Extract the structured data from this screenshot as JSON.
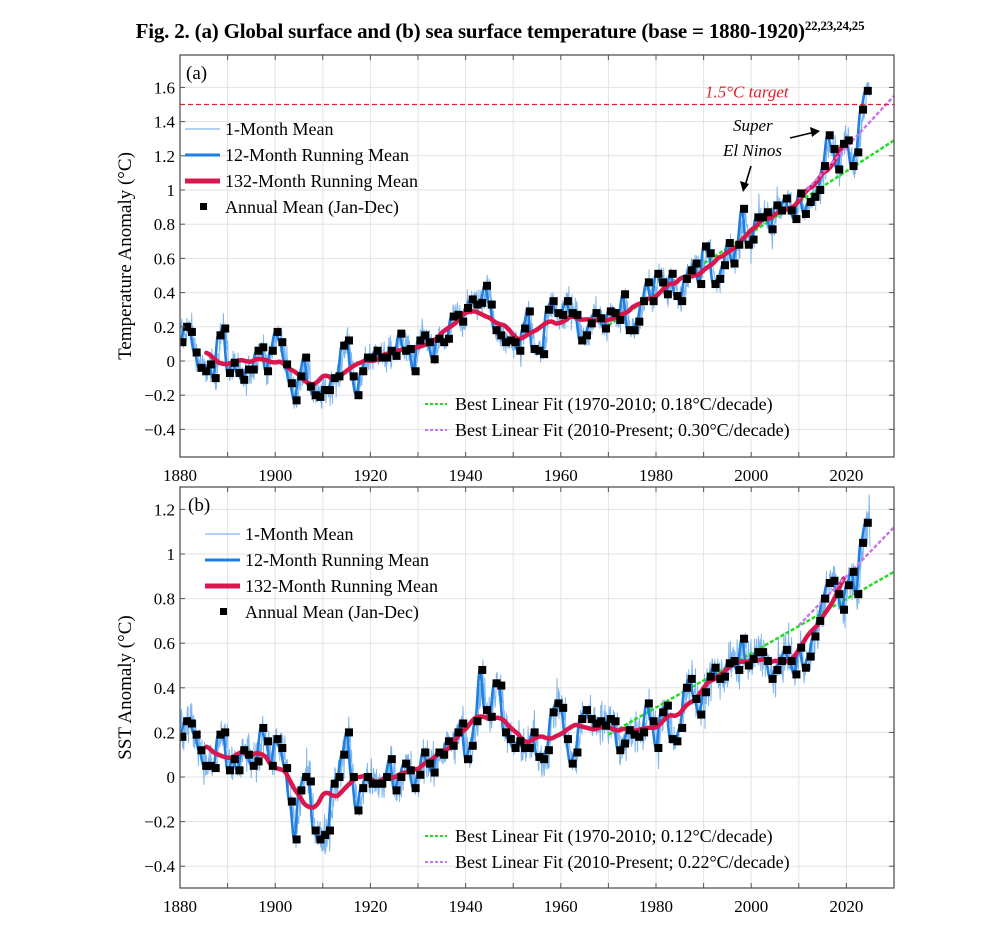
{
  "figure": {
    "title": "Fig. 2. (a) Global surface and (b) sea surface temperature (base = 1880-1920)",
    "title_refs": "22,23,24,25"
  },
  "colors": {
    "monthly": "#7fb6ee",
    "running12": "#1f7fe0",
    "running132": "#d8174f",
    "annual": "#000000",
    "fit1": "#22dd22",
    "fit2": "#cc77ee",
    "target": "#e0202e",
    "grid": "#e3e3e3",
    "axis": "#555555"
  },
  "chart_data": [
    {
      "type": "line",
      "panel": "(a)",
      "title": "Global surface temperature",
      "xlabel": "",
      "ylabel": "Temperature Anomaly (°C)",
      "xlim": [
        1880,
        2030
      ],
      "ylim": [
        -0.55,
        1.75
      ],
      "grid": true,
      "legend_position": "top-left",
      "x_ticks": [
        1880,
        1900,
        1920,
        1940,
        1960,
        1980,
        2000,
        2020
      ],
      "y_ticks": [
        -0.4,
        -0.2,
        0,
        0.2,
        0.4,
        0.6,
        0.8,
        1,
        1.2,
        1.4,
        1.6
      ],
      "y_tick_labels": [
        "−0.4",
        "−0.2",
        "0",
        "0.2",
        "0.4",
        "0.6",
        "0.8",
        "1",
        "1.2",
        "1.4",
        "1.6"
      ],
      "x_tick_labels": [
        "1880",
        "1900",
        "1920",
        "1940",
        "1960",
        "1980",
        "2000",
        "2020"
      ],
      "legend": [
        {
          "key": "monthly",
          "label": "1-Month Mean"
        },
        {
          "key": "running12",
          "label": "12-Month Running Mean"
        },
        {
          "key": "running132",
          "label": "132-Month Running Mean"
        },
        {
          "key": "annual",
          "label": "Annual Mean (Jan-Dec)"
        }
      ],
      "fit_legend": [
        {
          "key": "fit1",
          "label": "Best Linear Fit (1970-2010; 0.18°C/decade)"
        },
        {
          "key": "fit2",
          "label": "Best Linear Fit (2010-Present; 0.30°C/decade)"
        }
      ],
      "target_line": {
        "value": 1.5,
        "label": "1.5°C target"
      },
      "annotation": {
        "lines": [
          "Super",
          "El Ninos"
        ],
        "points_to_years": [
          1998,
          2016
        ]
      },
      "fits": [
        {
          "name": "Best Linear Fit (1970-2010)",
          "x": [
            1970,
            2030
          ],
          "y": [
            0.21,
            1.29
          ],
          "slope_per_decade": 0.18
        },
        {
          "name": "Best Linear Fit (2010-Present)",
          "x": [
            2010,
            2030
          ],
          "y": [
            0.95,
            1.55
          ],
          "slope_per_decade": 0.3
        }
      ],
      "annual_start_year": 1880,
      "annual_mean": [
        0.11,
        0.2,
        0.17,
        0.05,
        -0.04,
        -0.06,
        -0.02,
        -0.1,
        0.15,
        0.19,
        -0.07,
        -0.01,
        -0.07,
        -0.11,
        -0.05,
        -0.05,
        0.06,
        0.08,
        -0.06,
        0.06,
        0.17,
        0.11,
        -0.02,
        -0.13,
        -0.23,
        -0.09,
        0.02,
        -0.15,
        -0.2,
        -0.21,
        -0.17,
        -0.17,
        -0.1,
        -0.09,
        0.09,
        0.12,
        -0.09,
        -0.2,
        -0.06,
        0.02,
        0.02,
        0.06,
        0.02,
        0.02,
        0.06,
        0.03,
        0.16,
        0.06,
        0.07,
        -0.06,
        0.12,
        0.15,
        0.11,
        0.01,
        0.13,
        0.11,
        0.13,
        0.26,
        0.27,
        0.23,
        0.31,
        0.36,
        0.33,
        0.34,
        0.44,
        0.33,
        0.18,
        0.15,
        0.11,
        0.12,
        0.11,
        0.06,
        0.19,
        0.29,
        0.07,
        0.06,
        0.04,
        0.3,
        0.35,
        0.28,
        0.27,
        0.35,
        0.28,
        0.27,
        0.12,
        0.15,
        0.22,
        0.28,
        0.25,
        0.19,
        0.29,
        0.28,
        0.24,
        0.39,
        0.18,
        0.18,
        0.23,
        0.35,
        0.46,
        0.35,
        0.51,
        0.46,
        0.39,
        0.51,
        0.38,
        0.35,
        0.48,
        0.53,
        0.57,
        0.45,
        0.67,
        0.63,
        0.45,
        0.48,
        0.56,
        0.69,
        0.57,
        0.68,
        0.89,
        0.68,
        0.71,
        0.84,
        0.84,
        0.87,
        0.77,
        0.91,
        0.88,
        0.95,
        0.88,
        0.83,
        0.98,
        0.86,
        0.93,
        0.96,
        1.0,
        1.14,
        1.32,
        1.24,
        1.12,
        1.27,
        1.29,
        1.14,
        1.22,
        1.47,
        1.58
      ]
    },
    {
      "type": "line",
      "panel": "(b)",
      "title": "Sea surface temperature",
      "xlabel": "",
      "ylabel": "SST Anomaly (°C)",
      "xlim": [
        1880,
        2030
      ],
      "ylim": [
        -0.5,
        1.27
      ],
      "grid": true,
      "legend_position": "top-left",
      "x_ticks": [
        1880,
        1900,
        1920,
        1940,
        1960,
        1980,
        2000,
        2020
      ],
      "y_ticks": [
        -0.4,
        -0.2,
        0,
        0.2,
        0.4,
        0.6,
        0.8,
        1,
        1.2
      ],
      "y_tick_labels": [
        "−0.4",
        "−0.2",
        "0",
        "0.2",
        "0.4",
        "0.6",
        "0.8",
        "1",
        "1.2"
      ],
      "x_tick_labels": [
        "1880",
        "1900",
        "1920",
        "1940",
        "1960",
        "1980",
        "2000",
        "2020"
      ],
      "legend": [
        {
          "key": "monthly",
          "label": "1-Month Mean"
        },
        {
          "key": "running12",
          "label": "12-Month Running Mean"
        },
        {
          "key": "running132",
          "label": "132-Month Running Mean"
        },
        {
          "key": "annual",
          "label": "Annual Mean (Jan-Dec)"
        }
      ],
      "fit_legend": [
        {
          "key": "fit1",
          "label": "Best Linear Fit (1970-2010; 0.12°C/decade)"
        },
        {
          "key": "fit2",
          "label": "Best Linear Fit (2010-Present; 0.22°C/decade)"
        }
      ],
      "fits": [
        {
          "name": "Best Linear Fit (1970-2010)",
          "x": [
            1970,
            2030
          ],
          "y": [
            0.19,
            0.92
          ],
          "slope_per_decade": 0.12
        },
        {
          "name": "Best Linear Fit (2010-Present)",
          "x": [
            2010,
            2030
          ],
          "y": [
            0.68,
            1.12
          ],
          "slope_per_decade": 0.22
        }
      ],
      "annual_start_year": 1880,
      "annual_mean": [
        0.18,
        0.25,
        0.24,
        0.19,
        0.12,
        0.05,
        0.05,
        0.04,
        0.19,
        0.2,
        0.03,
        0.08,
        0.03,
        0.12,
        0.1,
        0.05,
        0.07,
        0.22,
        0.16,
        0.05,
        0.17,
        0.13,
        0.04,
        -0.11,
        -0.28,
        -0.06,
        0.0,
        -0.02,
        -0.24,
        -0.28,
        -0.26,
        -0.24,
        -0.03,
        0.0,
        0.1,
        0.2,
        0.0,
        -0.15,
        -0.05,
        0.0,
        -0.03,
        -0.03,
        -0.03,
        0.0,
        0.08,
        -0.06,
        0.0,
        0.06,
        0.03,
        -0.05,
        0.01,
        0.11,
        0.06,
        0.02,
        0.11,
        0.1,
        0.16,
        0.14,
        0.2,
        0.24,
        0.08,
        0.14,
        0.25,
        0.48,
        0.3,
        0.27,
        0.42,
        0.41,
        0.2,
        0.17,
        0.13,
        0.16,
        0.13,
        0.13,
        0.2,
        0.09,
        0.08,
        0.12,
        0.29,
        0.33,
        0.31,
        0.17,
        0.06,
        0.11,
        0.26,
        0.3,
        0.26,
        0.24,
        0.25,
        0.23,
        0.26,
        0.25,
        0.12,
        0.15,
        0.21,
        0.19,
        0.18,
        0.2,
        0.33,
        0.25,
        0.13,
        0.29,
        0.32,
        0.17,
        0.16,
        0.22,
        0.4,
        0.44,
        0.35,
        0.28,
        0.38,
        0.45,
        0.49,
        0.44,
        0.45,
        0.51,
        0.52,
        0.48,
        0.62,
        0.5,
        0.53,
        0.56,
        0.56,
        0.52,
        0.44,
        0.48,
        0.52,
        0.57,
        0.52,
        0.46,
        0.58,
        0.49,
        0.54,
        0.63,
        0.7,
        0.8,
        0.87,
        0.88,
        0.82,
        0.75,
        0.86,
        0.92,
        0.82,
        1.05,
        1.14
      ]
    }
  ]
}
